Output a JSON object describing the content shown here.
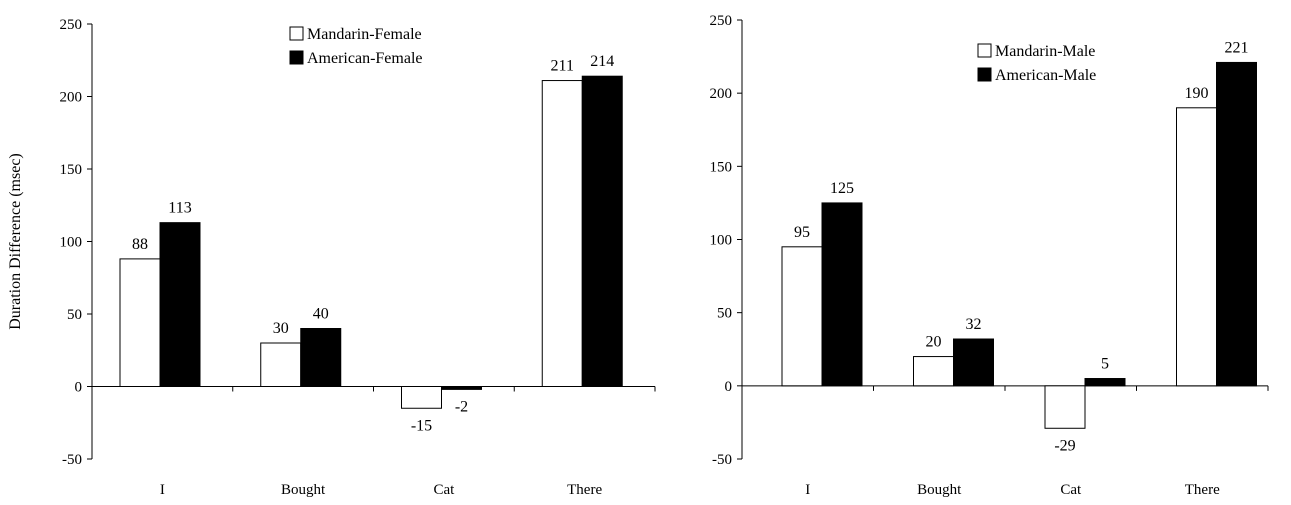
{
  "chart_data": [
    {
      "type": "bar",
      "categories": [
        "I",
        "Bought",
        "Cat",
        "There"
      ],
      "series": [
        {
          "name": "Mandarin-Female",
          "values": [
            88,
            30,
            -15,
            211
          ],
          "fill": "#ffffff"
        },
        {
          "name": "American-Female",
          "values": [
            113,
            40,
            -2,
            214
          ],
          "fill": "#000000"
        }
      ],
      "data_labels": [
        [
          "88",
          "30",
          "-15",
          "211"
        ],
        [
          "113",
          "40",
          "-2",
          "214"
        ]
      ],
      "ylabel": "Duration Difference (msec)",
      "ylim": [
        -50,
        250
      ],
      "yticks": [
        "250",
        "200",
        "150",
        "100",
        "50",
        "0",
        "-50"
      ],
      "legend": "top-right",
      "grid": false
    },
    {
      "type": "bar",
      "categories": [
        "I",
        "Bought",
        "Cat",
        "There"
      ],
      "series": [
        {
          "name": "Mandarin-Male",
          "values": [
            95,
            20,
            -29,
            190
          ],
          "fill": "#ffffff"
        },
        {
          "name": "American-Male",
          "values": [
            125,
            32,
            5,
            221
          ],
          "fill": "#000000"
        }
      ],
      "data_labels": [
        [
          "95",
          "20",
          "-29",
          "190"
        ],
        [
          "125",
          "32",
          "5",
          "221"
        ]
      ],
      "ylabel": "",
      "ylim": [
        -50,
        250
      ],
      "yticks": [
        "250",
        "200",
        "150",
        "100",
        "50",
        "0",
        "-50"
      ],
      "legend": "top-right",
      "grid": false
    }
  ]
}
